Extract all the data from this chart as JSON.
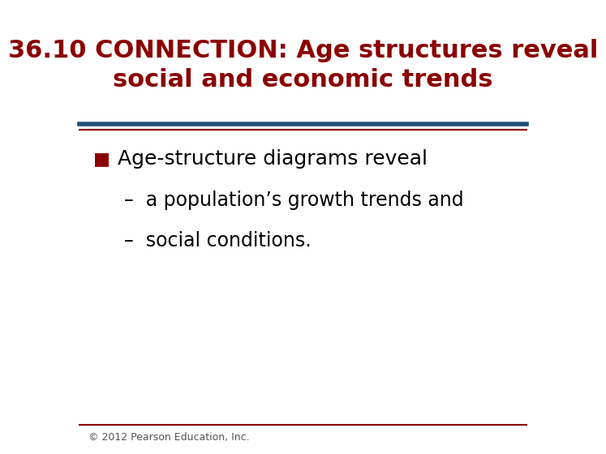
{
  "title_line1": "36.10 CONNECTION: Age structures reveal",
  "title_line2": "social and economic trends",
  "title_color": "#8B0000",
  "title_fontsize": 22,
  "title_bold": true,
  "separator_color_top": "#1F4E79",
  "separator_color_bottom": "#8B0000",
  "bullet_text": "Age-structure diagrams reveal",
  "bullet_color": "#8B0000",
  "bullet_fontsize": 18,
  "sub_bullet1": "a population’s growth trends and",
  "sub_bullet2": "social conditions.",
  "sub_fontsize": 17,
  "sub_color": "#000000",
  "footer_text": "© 2012 Pearson Education, Inc.",
  "footer_fontsize": 9,
  "background_color": "#ffffff"
}
